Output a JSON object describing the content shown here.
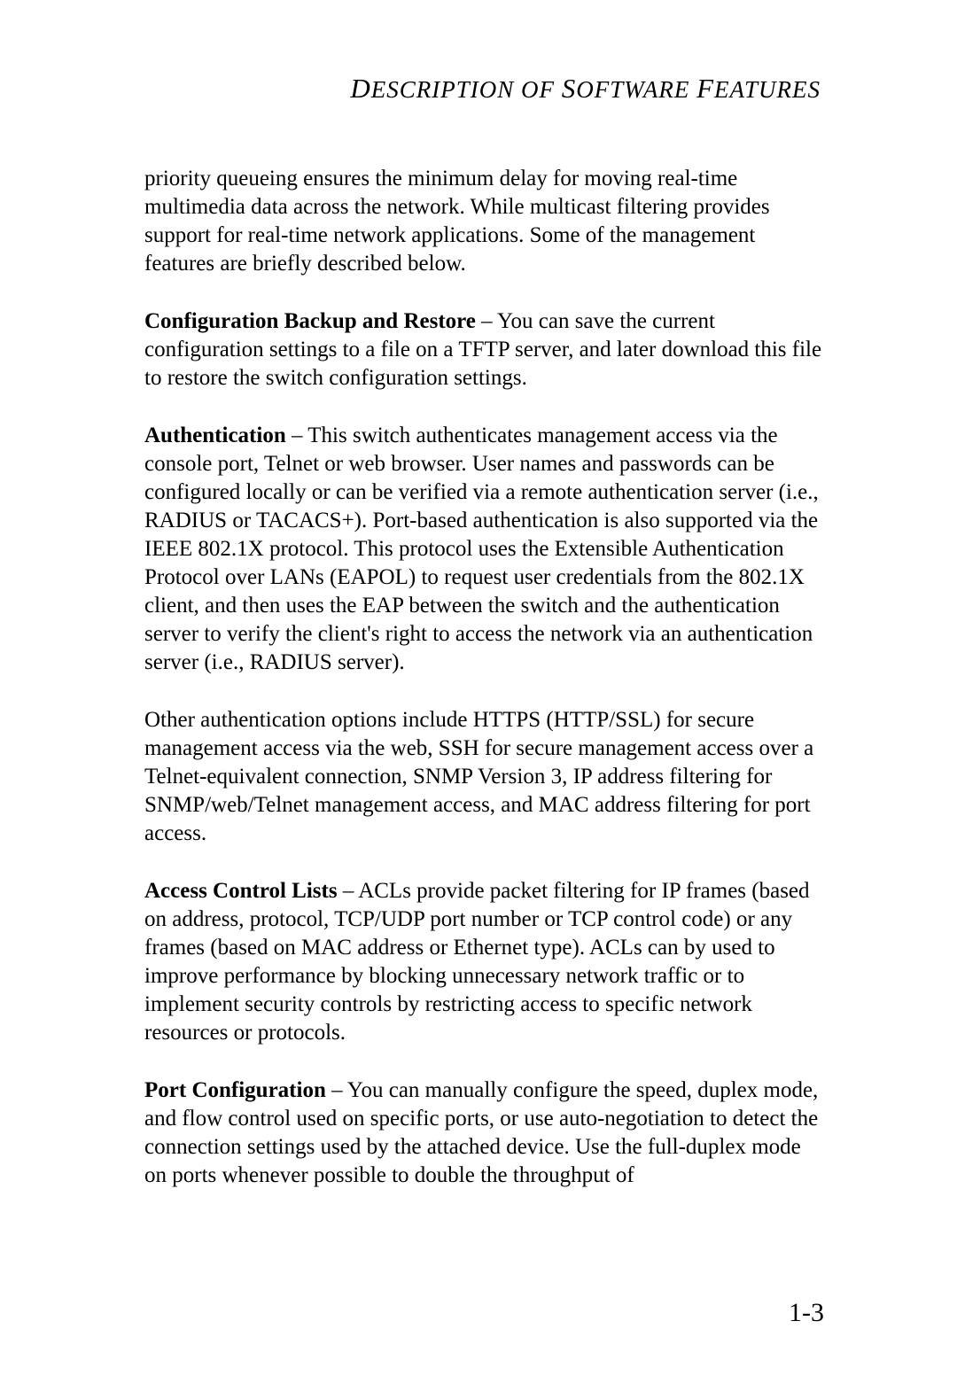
{
  "header": {
    "text_html": "<span class='cap'>D</span>ESCRIPTION OF <span class='cap'>S</span>OFTWARE <span class='cap'>F</span>EATURES"
  },
  "paragraphs": [
    {
      "bold": "",
      "text": "priority queueing ensures the minimum delay for moving real-time multimedia data across the network. While multicast filtering provides support for real-time network applications. Some of the management features are briefly described below."
    },
    {
      "bold": "Configuration Backup and Restore",
      "text": " – You can save the current configuration settings to a file on a TFTP server, and later download this file to restore the switch configuration settings."
    },
    {
      "bold": "Authentication",
      "text": " – This switch authenticates management access via the console port, Telnet or web browser. User names and passwords can be configured locally or can be verified via a remote authentication server (i.e., RADIUS or TACACS+). Port-based authentication is also supported via the IEEE 802.1X protocol. This protocol uses the Extensible Authentication Protocol over LANs (EAPOL) to request user credentials from the 802.1X client, and then uses the EAP between the switch and the authentication server to verify the client's right to access the network via an authentication server (i.e., RADIUS server)."
    },
    {
      "bold": "",
      "text": "Other authentication options include HTTPS (HTTP/SSL) for secure management access via the web, SSH for secure management access over a Telnet-equivalent connection, SNMP Version 3, IP address filtering for SNMP/web/Telnet management access, and MAC address filtering for port access."
    },
    {
      "bold": "Access Control Lists",
      "text": " – ACLs provide packet filtering for IP frames (based on address, protocol, TCP/UDP port number or TCP control code) or any frames (based on MAC address or Ethernet type). ACLs can by used to improve performance by blocking unnecessary network traffic or to implement security controls by restricting access to specific network resources or protocols."
    },
    {
      "bold": "Port Configuration",
      "text": " – You can manually configure the speed, duplex mode, and flow control used on specific ports, or use auto-negotiation to detect the connection settings used by the attached device. Use the full-duplex mode on ports whenever possible to double the throughput of"
    }
  ],
  "page_number": "1-3"
}
